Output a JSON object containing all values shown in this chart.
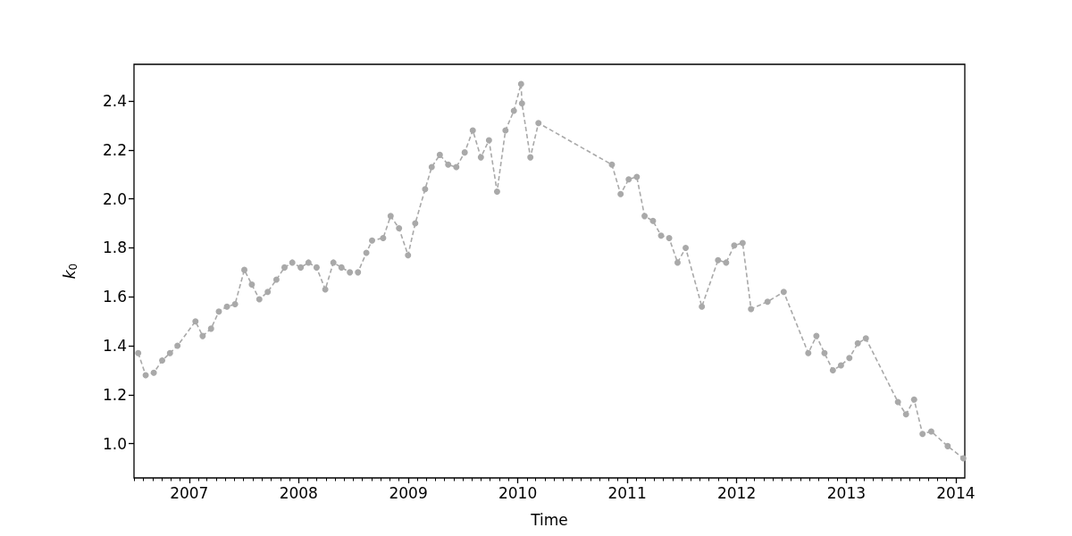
{
  "chart_data": {
    "type": "line",
    "xlabel": "Time",
    "ylabel": "k$_{0}$",
    "x": [
      "2006-07-15",
      "2006-08-09",
      "2006-09-05",
      "2006-10-03",
      "2006-10-29",
      "2006-11-23",
      "2007-01-22",
      "2007-02-15",
      "2007-03-15",
      "2007-04-10",
      "2007-05-07",
      "2007-06-03",
      "2007-07-04",
      "2007-07-29",
      "2007-08-23",
      "2007-09-20",
      "2007-10-19",
      "2007-11-15",
      "2007-12-11",
      "2008-01-08",
      "2008-02-03",
      "2008-03-01",
      "2008-03-30",
      "2008-04-26",
      "2008-05-23",
      "2008-06-20",
      "2008-07-17",
      "2008-08-14",
      "2008-09-02",
      "2008-10-09",
      "2008-11-03",
      "2008-12-01",
      "2008-12-31",
      "2009-01-24",
      "2009-02-26",
      "2009-03-20",
      "2009-04-16",
      "2009-05-14",
      "2009-06-10",
      "2009-07-08",
      "2009-08-04",
      "2009-08-31",
      "2009-09-27",
      "2009-10-24",
      "2009-11-21",
      "2009-12-19",
      "2010-01-12",
      "2010-01-15",
      "2010-02-12",
      "2010-03-11",
      "2010-11-11",
      "2010-12-10",
      "2011-01-06",
      "2011-02-02",
      "2011-02-28",
      "2011-03-28",
      "2011-04-24",
      "2011-05-21",
      "2011-06-18",
      "2011-07-15",
      "2011-09-07",
      "2011-10-31",
      "2011-11-27",
      "2011-12-24",
      "2012-01-21",
      "2012-02-18",
      "2012-04-13",
      "2012-06-06",
      "2012-08-27",
      "2012-09-23",
      "2012-10-20",
      "2012-11-17",
      "2012-12-14",
      "2013-01-11",
      "2013-02-08",
      "2013-03-07",
      "2013-06-22",
      "2013-07-19",
      "2013-08-15",
      "2013-09-12",
      "2013-10-11",
      "2013-12-05",
      "2014-01-26"
    ],
    "series": [
      {
        "color": "#a9a9a9",
        "values": [
          1.37,
          1.28,
          1.29,
          1.34,
          1.37,
          1.4,
          1.5,
          1.44,
          1.47,
          1.54,
          1.56,
          1.57,
          1.71,
          1.65,
          1.59,
          1.62,
          1.67,
          1.72,
          1.74,
          1.72,
          1.74,
          1.72,
          1.63,
          1.74,
          1.72,
          1.7,
          1.7,
          1.78,
          1.83,
          1.84,
          1.93,
          1.88,
          1.77,
          1.9,
          2.04,
          2.13,
          2.18,
          2.14,
          2.13,
          2.19,
          2.28,
          2.17,
          2.24,
          2.03,
          2.28,
          2.36,
          2.47,
          2.39,
          2.17,
          2.31,
          2.14,
          2.02,
          2.08,
          2.09,
          1.93,
          1.91,
          1.85,
          1.84,
          1.74,
          1.8,
          1.56,
          1.75,
          1.74,
          1.81,
          1.82,
          1.55,
          1.58,
          1.62,
          1.37,
          1.44,
          1.37,
          1.3,
          1.32,
          1.35,
          1.41,
          1.43,
          1.17,
          1.12,
          1.18,
          1.04,
          1.05,
          0.99,
          0.94
        ]
      }
    ],
    "xlim": [
      "2006-07-01",
      "2014-01-31"
    ],
    "xticks": [
      {
        "value": "2006-07",
        "label": null
      },
      {
        "value": "2006-08",
        "label": null
      },
      {
        "value": "2006-09",
        "label": null
      },
      {
        "value": "2006-10",
        "label": null
      },
      {
        "value": "2006-11",
        "label": null
      },
      {
        "value": "2006-12",
        "label": null
      },
      "2007",
      {
        "value": "2007-02",
        "label": null
      },
      {
        "value": "2007-03",
        "label": null
      },
      {
        "value": "2007-04",
        "label": null
      },
      {
        "value": "2007-05",
        "label": null
      },
      {
        "value": "2007-06",
        "label": null
      },
      {
        "value": "2007-07",
        "label": null
      },
      {
        "value": "2007-08",
        "label": null
      },
      {
        "value": "2007-09",
        "label": null
      },
      {
        "value": "2007-10",
        "label": null
      },
      {
        "value": "2007-11",
        "label": null
      },
      {
        "value": "2007-12",
        "label": null
      },
      "2008",
      {
        "value": "2008-02",
        "label": null
      },
      {
        "value": "2008-03",
        "label": null
      },
      {
        "value": "2008-04",
        "label": null
      },
      {
        "value": "2008-05",
        "label": null
      },
      {
        "value": "2008-06",
        "label": null
      },
      {
        "value": "2008-07",
        "label": null
      },
      {
        "value": "2008-08",
        "label": null
      },
      {
        "value": "2008-09",
        "label": null
      },
      {
        "value": "2008-10",
        "label": null
      },
      {
        "value": "2008-11",
        "label": null
      },
      {
        "value": "2008-12",
        "label": null
      },
      "2009",
      {
        "value": "2009-02",
        "label": null
      },
      {
        "value": "2009-03",
        "label": null
      },
      {
        "value": "2009-04",
        "label": null
      },
      {
        "value": "2009-05",
        "label": null
      },
      {
        "value": "2009-06",
        "label": null
      },
      {
        "value": "2009-07",
        "label": null
      },
      {
        "value": "2009-08",
        "label": null
      },
      {
        "value": "2009-09",
        "label": null
      },
      {
        "value": "2009-10",
        "label": null
      },
      {
        "value": "2009-11",
        "label": null
      },
      {
        "value": "2009-12",
        "label": null
      },
      "2010",
      {
        "value": "2010-02",
        "label": null
      },
      {
        "value": "2010-03",
        "label": null
      },
      {
        "value": "2010-04",
        "label": null
      },
      {
        "value": "2010-05",
        "label": null
      },
      {
        "value": "2010-06",
        "label": null
      },
      {
        "value": "2010-07",
        "label": null
      },
      {
        "value": "2010-08",
        "label": null
      },
      {
        "value": "2010-09",
        "label": null
      },
      {
        "value": "2010-10",
        "label": null
      },
      {
        "value": "2010-11",
        "label": null
      },
      {
        "value": "2010-12",
        "label": null
      },
      "2011",
      {
        "value": "2011-02",
        "label": null
      },
      {
        "value": "2011-03",
        "label": null
      },
      {
        "value": "2011-04",
        "label": null
      },
      {
        "value": "2011-05",
        "label": null
      },
      {
        "value": "2011-06",
        "label": null
      },
      {
        "value": "2011-07",
        "label": null
      },
      {
        "value": "2011-08",
        "label": null
      },
      {
        "value": "2011-09",
        "label": null
      },
      {
        "value": "2011-10",
        "label": null
      },
      {
        "value": "2011-11",
        "label": null
      },
      {
        "value": "2011-12",
        "label": null
      },
      "2012",
      {
        "value": "2012-02",
        "label": null
      },
      {
        "value": "2012-03",
        "label": null
      },
      {
        "value": "2012-04",
        "label": null
      },
      {
        "value": "2012-05",
        "label": null
      },
      {
        "value": "2012-06",
        "label": null
      },
      {
        "value": "2012-07",
        "label": null
      },
      {
        "value": "2012-08",
        "label": null
      },
      {
        "value": "2012-09",
        "label": null
      },
      {
        "value": "2012-10",
        "label": null
      },
      {
        "value": "2012-11",
        "label": null
      },
      {
        "value": "2012-12",
        "label": null
      },
      "2013",
      {
        "value": "2013-02",
        "label": null
      },
      {
        "value": "2013-03",
        "label": null
      },
      {
        "value": "2013-04",
        "label": null
      },
      {
        "value": "2013-05",
        "label": null
      },
      {
        "value": "2013-06",
        "label": null
      },
      {
        "value": "2013-07",
        "label": null
      },
      {
        "value": "2013-08",
        "label": null
      },
      {
        "value": "2013-09",
        "label": null
      },
      {
        "value": "2013-10",
        "label": null
      },
      {
        "value": "2013-11",
        "label": null
      },
      {
        "value": "2013-12",
        "label": null
      },
      "2014"
    ],
    "ylim": [
      0.86,
      2.55
    ],
    "yticks": [
      {
        "value": 1.0,
        "label": "1.0"
      },
      1.2,
      1.4,
      1.6,
      1.8,
      {
        "value": 2.0,
        "label": "2.0"
      },
      2.2,
      2.4
    ],
    "grid": false,
    "marker": "circle",
    "line_style": "dashed"
  }
}
